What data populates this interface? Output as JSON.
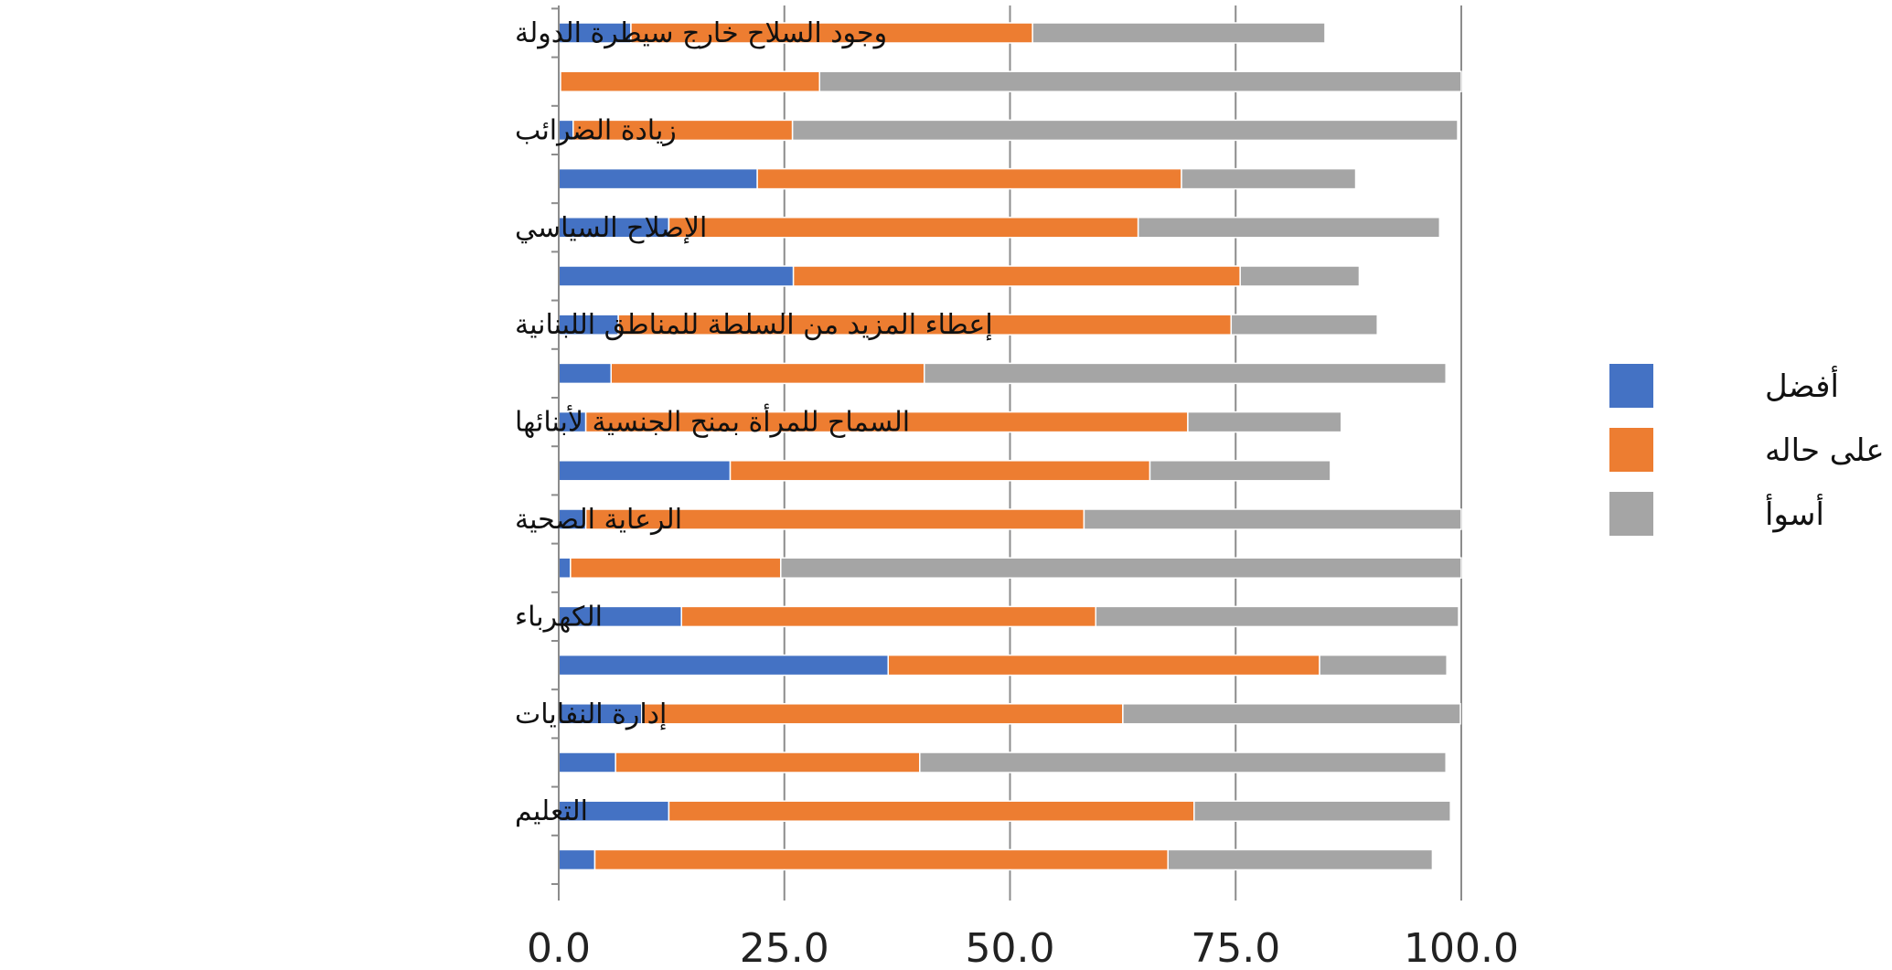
{
  "chart_data": {
    "type": "bar",
    "orientation": "horizontal",
    "stacked": true,
    "categories": [
      "وجود السلاح خارج سيطرة الدولة",
      "",
      "زيادة الضرائب",
      "",
      "الإصلاح السياسي",
      "",
      "إعطاء المزيد من السلطة للمناطق اللبنانية",
      "",
      "السماح للمرأة بمنح الجنسية لأبنائها",
      "",
      "الرعاية الصحية",
      "",
      "الكهرباء",
      "",
      "إدارة النفايات",
      "",
      "التعليم",
      ""
    ],
    "series": [
      {
        "name": "أفضل",
        "color": "#4472C4",
        "values": [
          8.0,
          0.2,
          1.6,
          22.0,
          12.2,
          26.0,
          6.6,
          5.8,
          3.0,
          19.0,
          3.0,
          1.3,
          13.6,
          36.5,
          9.2,
          6.3,
          12.2,
          4.0
        ]
      },
      {
        "name": "بقي على حاله",
        "color": "#ED7D31",
        "values": [
          44.5,
          28.7,
          24.3,
          47.0,
          52.0,
          49.5,
          67.9,
          34.7,
          66.7,
          46.5,
          55.2,
          23.3,
          45.9,
          47.8,
          53.3,
          33.7,
          58.2,
          63.5
        ]
      },
      {
        "name": "أسوأ",
        "color": "#A5A5A5",
        "values": [
          32.4,
          71.1,
          73.7,
          19.3,
          33.4,
          13.2,
          16.2,
          57.8,
          17.0,
          20.0,
          41.8,
          75.4,
          40.2,
          14.1,
          37.4,
          58.3,
          28.4,
          29.3
        ]
      }
    ],
    "xlim": [
      0,
      100
    ],
    "xticks": [
      "0.0",
      "25.0",
      "50.0",
      "75.0",
      "100.0"
    ],
    "grid": "vertical",
    "legend_position": "right",
    "title": "",
    "xlabel": "",
    "ylabel": ""
  }
}
